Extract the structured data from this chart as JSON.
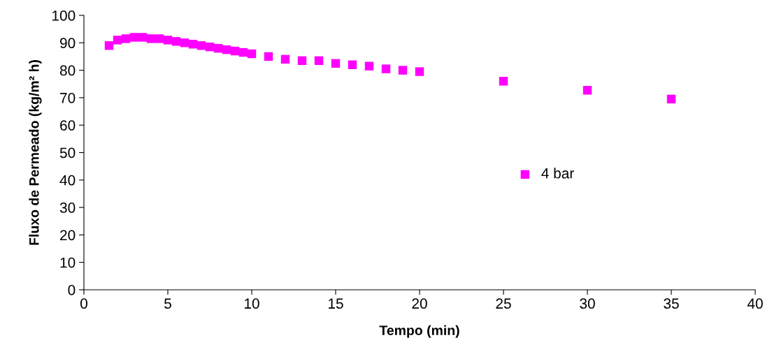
{
  "chart_data": {
    "type": "scatter",
    "xlabel": "Tempo (min)",
    "ylabel": "Fluxo de Permeado (kg/m² h)",
    "x": [
      1.5,
      2,
      2.5,
      3,
      3.5,
      4,
      4.5,
      5,
      5.5,
      6,
      6.5,
      7,
      7.5,
      8,
      8.5,
      9,
      9.5,
      10,
      11,
      12,
      13,
      14,
      15,
      16,
      17,
      18,
      19,
      20,
      25,
      30,
      35
    ],
    "series": [
      {
        "name": "4 bar",
        "color": "#ff00ff",
        "values": [
          89,
          91,
          91.5,
          92,
          92,
          91.5,
          91.5,
          91,
          90.5,
          90,
          89.5,
          89,
          88.5,
          88,
          87.5,
          87,
          86.5,
          86,
          85,
          84,
          83.5,
          83.5,
          82.5,
          82,
          81.5,
          80.5,
          80,
          79.5,
          76,
          72.7,
          69.5
        ]
      }
    ],
    "xlim": [
      0,
      40
    ],
    "xticks": [
      0,
      5,
      10,
      15,
      20,
      25,
      30,
      35,
      40
    ],
    "ylim": [
      0,
      100
    ],
    "yticks": [
      0,
      10,
      20,
      30,
      40,
      50,
      60,
      70,
      80,
      90,
      100
    ],
    "marker": "square",
    "grid": false,
    "legend": "right"
  }
}
